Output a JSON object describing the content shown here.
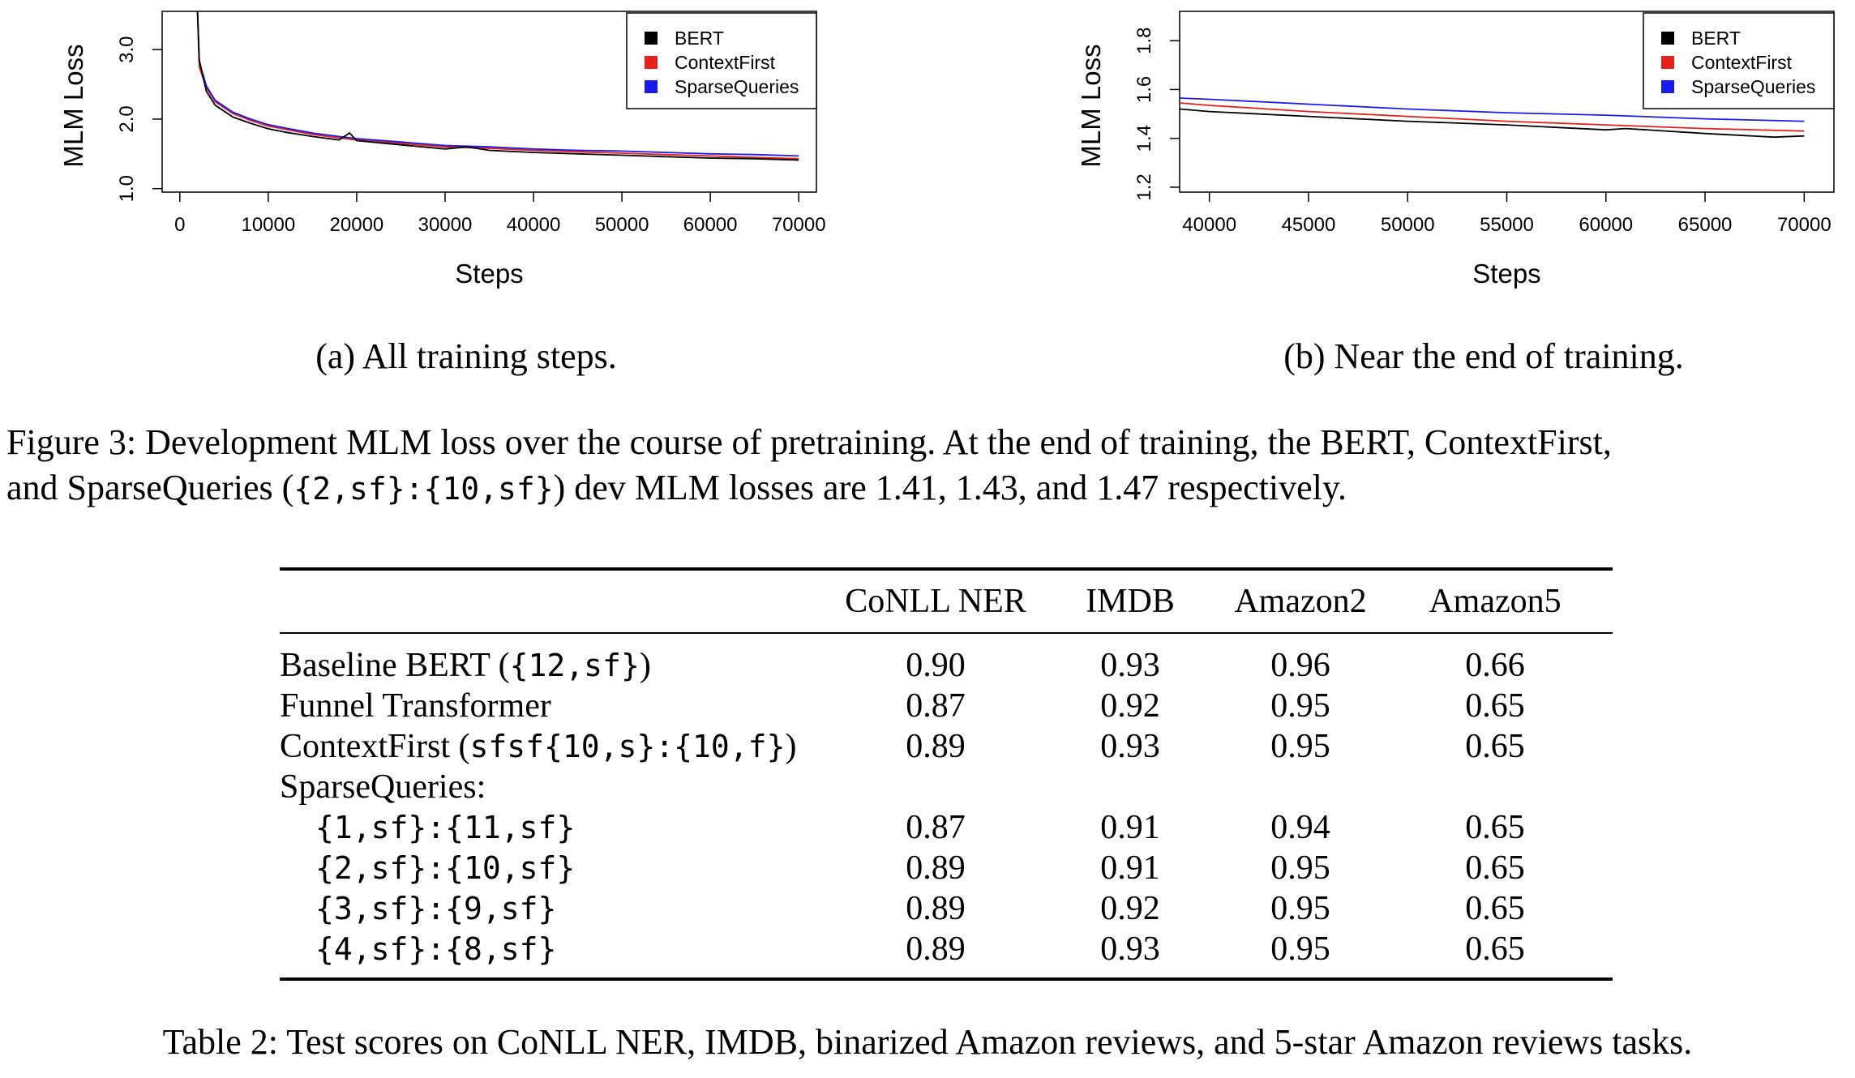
{
  "chart_data": [
    {
      "type": "line",
      "subcaption": "(a) All training steps.",
      "xlabel": "Steps",
      "ylabel": "MLM Loss",
      "xlim": [
        -2000,
        72000
      ],
      "ylim": [
        0.95,
        3.55
      ],
      "xticks": [
        "0",
        "10000",
        "20000",
        "30000",
        "40000",
        "50000",
        "60000",
        "70000"
      ],
      "xtick_values": [
        0,
        10000,
        20000,
        30000,
        40000,
        50000,
        60000,
        70000
      ],
      "yticks": [
        "1.0",
        "2.0",
        "3.0"
      ],
      "ytick_values": [
        1.0,
        2.0,
        3.0
      ],
      "legend": [
        "BERT",
        "ContextFirst",
        "SparseQueries"
      ],
      "legend_position": "top-right",
      "series": [
        {
          "name": "ContextFirst",
          "color": "#e8201c",
          "x": [
            2000,
            2200,
            3000,
            4000,
            6000,
            8000,
            10000,
            12000,
            15000,
            18000,
            20000,
            25000,
            30000,
            35000,
            40000,
            45000,
            50000,
            55000,
            60000,
            65000,
            70000
          ],
          "y": [
            3.55,
            2.75,
            2.45,
            2.25,
            2.08,
            1.98,
            1.9,
            1.85,
            1.78,
            1.73,
            1.7,
            1.65,
            1.6,
            1.58,
            1.55,
            1.53,
            1.51,
            1.49,
            1.47,
            1.45,
            1.43
          ]
        },
        {
          "name": "SparseQueries",
          "color": "#1a1aee",
          "x": [
            2000,
            2200,
            3000,
            4000,
            6000,
            8000,
            10000,
            12000,
            15000,
            18000,
            20000,
            25000,
            30000,
            35000,
            40000,
            45000,
            50000,
            55000,
            60000,
            65000,
            70000
          ],
          "y": [
            3.55,
            2.82,
            2.48,
            2.27,
            2.1,
            2.0,
            1.92,
            1.87,
            1.8,
            1.75,
            1.72,
            1.67,
            1.62,
            1.6,
            1.57,
            1.55,
            1.54,
            1.52,
            1.5,
            1.49,
            1.47
          ]
        },
        {
          "name": "BERT",
          "color": "#000000",
          "x": [
            2000,
            2200,
            3000,
            4000,
            6000,
            8000,
            10000,
            12000,
            15000,
            18000,
            19200,
            20000,
            25000,
            30000,
            32500,
            35000,
            40000,
            45000,
            50000,
            55000,
            60000,
            65000,
            70000
          ],
          "y": [
            3.55,
            2.85,
            2.4,
            2.2,
            2.03,
            1.94,
            1.86,
            1.81,
            1.75,
            1.7,
            1.8,
            1.69,
            1.63,
            1.57,
            1.6,
            1.55,
            1.52,
            1.5,
            1.48,
            1.46,
            1.44,
            1.43,
            1.41
          ]
        }
      ]
    },
    {
      "type": "line",
      "subcaption": "(b) Near the end of training.",
      "xlabel": "Steps",
      "ylabel": "MLM Loss",
      "xlim": [
        38500,
        71500
      ],
      "ylim": [
        1.18,
        1.92
      ],
      "xticks": [
        "40000",
        "45000",
        "50000",
        "55000",
        "60000",
        "65000",
        "70000"
      ],
      "xtick_values": [
        40000,
        45000,
        50000,
        55000,
        60000,
        65000,
        70000
      ],
      "yticks": [
        "1.2",
        "1.4",
        "1.6",
        "1.8"
      ],
      "ytick_values": [
        1.2,
        1.4,
        1.6,
        1.8
      ],
      "legend": [
        "BERT",
        "ContextFirst",
        "SparseQueries"
      ],
      "legend_position": "top-right",
      "series": [
        {
          "name": "SparseQueries",
          "color": "#1a1aee",
          "x": [
            38500,
            40000,
            45000,
            50000,
            55000,
            60000,
            65000,
            70000
          ],
          "y": [
            1.565,
            1.56,
            1.54,
            1.52,
            1.505,
            1.495,
            1.48,
            1.47
          ]
        },
        {
          "name": "ContextFirst",
          "color": "#e8201c",
          "x": [
            38500,
            40000,
            45000,
            50000,
            55000,
            60000,
            65000,
            70000
          ],
          "y": [
            1.545,
            1.535,
            1.51,
            1.49,
            1.47,
            1.455,
            1.44,
            1.43
          ]
        },
        {
          "name": "BERT",
          "color": "#000000",
          "x": [
            38500,
            40000,
            45000,
            50000,
            55000,
            60000,
            61000,
            65000,
            68500,
            70000
          ],
          "y": [
            1.52,
            1.51,
            1.49,
            1.47,
            1.455,
            1.435,
            1.44,
            1.42,
            1.405,
            1.41
          ]
        }
      ]
    }
  ],
  "figure_caption": {
    "line1": "Figure 3: Development MLM loss over the course of pretraining. At the end of training, the BERT, ContextFirst,",
    "line2_pre": "and SparseQueries (",
    "line2_code": "{2,sf}:{10,sf}",
    "line2_post": ") dev MLM losses are 1.41, 1.43, and 1.47 respectively."
  },
  "table": {
    "headers": [
      "CoNLL NER",
      "IMDB",
      "Amazon2",
      "Amazon5"
    ],
    "rows": [
      {
        "label_text": "Baseline BERT (",
        "label_code": "{12,sf}",
        "label_after": ")",
        "values": [
          "0.90",
          "0.93",
          "0.96",
          "0.66"
        ]
      },
      {
        "label_text": "Funnel Transformer",
        "label_code": "",
        "label_after": "",
        "values": [
          "0.87",
          "0.92",
          "0.95",
          "0.65"
        ]
      },
      {
        "label_text": "ContextFirst (",
        "label_code": "sfsf{10,s}:{10,f}",
        "label_after": ")",
        "values": [
          "0.89",
          "0.93",
          "0.95",
          "0.65"
        ]
      },
      {
        "label_text": "SparseQueries:",
        "label_code": "",
        "label_after": "",
        "values": [
          "",
          "",
          "",
          ""
        ]
      },
      {
        "label_text": "",
        "label_code": "{1,sf}:{11,sf}",
        "label_after": "",
        "values": [
          "0.87",
          "0.91",
          "0.94",
          "0.65"
        ]
      },
      {
        "label_text": "",
        "label_code": "{2,sf}:{10,sf}",
        "label_after": "",
        "values": [
          "0.89",
          "0.91",
          "0.95",
          "0.65"
        ]
      },
      {
        "label_text": "",
        "label_code": "{3,sf}:{9,sf}",
        "label_after": "",
        "values": [
          "0.89",
          "0.92",
          "0.95",
          "0.65"
        ]
      },
      {
        "label_text": "",
        "label_code": "{4,sf}:{8,sf}",
        "label_after": "",
        "values": [
          "0.89",
          "0.93",
          "0.95",
          "0.65"
        ]
      }
    ],
    "caption": "Table 2: Test scores on CoNLL NER, IMDB, binarized Amazon reviews, and 5-star Amazon reviews tasks."
  }
}
